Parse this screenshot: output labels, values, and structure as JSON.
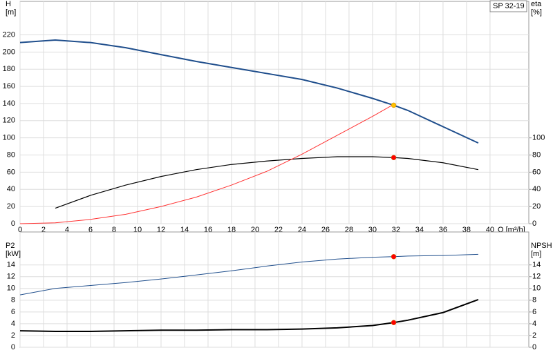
{
  "chart_data": [
    {
      "type": "line",
      "legend_text": "SP 32-19",
      "y_label": [
        "H",
        "[m]"
      ],
      "y2_label": [
        "eta",
        "[%]"
      ],
      "x_label": "Q [m³/h]",
      "xlim": [
        0,
        43.3
      ],
      "xticks": [
        0,
        2,
        4,
        6,
        8,
        10,
        12,
        14,
        16,
        18,
        20,
        22,
        24,
        26,
        28,
        30,
        32,
        34,
        36,
        38,
        40
      ],
      "ylim": [
        0,
        259
      ],
      "yticks": [
        0,
        20,
        40,
        60,
        80,
        100,
        120,
        140,
        160,
        180,
        200,
        220
      ],
      "y2lim": [
        0,
        259
      ],
      "y2ticks": [
        0,
        20,
        40,
        60,
        80,
        100
      ],
      "show_x_tick_labels": true,
      "grid": true,
      "series": [
        {
          "color": "#1f4e8c",
          "width": 2,
          "axis": "y",
          "x": [
            0,
            3,
            6,
            9,
            12,
            15,
            18,
            21,
            24,
            27,
            30,
            31.8,
            33,
            36,
            39
          ],
          "values": [
            211,
            214,
            211,
            205,
            197,
            189,
            182,
            175,
            168,
            158,
            146,
            138,
            132,
            113,
            94
          ]
        },
        {
          "color": "#000000",
          "width": 1.2,
          "axis": "y2",
          "x": [
            3,
            6,
            9,
            12,
            15,
            18,
            21,
            24,
            27,
            30,
            31.8,
            33,
            36,
            39
          ],
          "values": [
            18,
            33,
            45,
            55,
            63,
            69,
            73,
            76,
            78,
            78,
            77,
            76,
            71,
            63
          ]
        },
        {
          "color": "#ff3030",
          "width": 1,
          "axis": "y",
          "x": [
            0,
            3,
            6,
            9,
            12,
            15,
            18,
            21,
            24,
            27,
            30,
            31.8
          ],
          "values": [
            0,
            1,
            5,
            11,
            20,
            31,
            45,
            61,
            81,
            103,
            125,
            139
          ]
        }
      ],
      "markers": [
        {
          "x": 31.8,
          "y": 138,
          "axis": "y",
          "color": "#ffc000"
        },
        {
          "x": 31.8,
          "y": 77,
          "axis": "y2",
          "color": "#ff0000"
        }
      ]
    },
    {
      "type": "line",
      "y_label": [
        "P2",
        "[kW]"
      ],
      "y2_label": [
        "NPSH",
        "[m]"
      ],
      "xlim": [
        0,
        43.3
      ],
      "xticks": [
        0,
        2,
        4,
        6,
        8,
        10,
        12,
        14,
        16,
        18,
        20,
        22,
        24,
        26,
        28,
        30,
        32,
        34,
        36,
        38,
        40
      ],
      "ylim": [
        0,
        19.6
      ],
      "yticks": [
        0,
        2,
        4,
        6,
        8,
        10,
        12,
        14
      ],
      "y2lim": [
        0,
        19.6
      ],
      "y2ticks": [
        0,
        2,
        4,
        6,
        8,
        10,
        12,
        14
      ],
      "show_x_tick_labels": false,
      "grid": true,
      "series": [
        {
          "color": "#1f4e8c",
          "width": 1,
          "axis": "y",
          "x": [
            0,
            3,
            6,
            9,
            12,
            15,
            18,
            21,
            24,
            27,
            30,
            31.8,
            33,
            36,
            39
          ],
          "values": [
            8.9,
            10,
            10.5,
            11,
            11.6,
            12.3,
            13,
            13.8,
            14.5,
            15,
            15.3,
            15.4,
            15.5,
            15.6,
            15.8
          ]
        },
        {
          "color": "#000000",
          "width": 2,
          "axis": "y2",
          "x": [
            0,
            3,
            6,
            9,
            12,
            15,
            18,
            21,
            24,
            27,
            30,
            31.8,
            33,
            36,
            39
          ],
          "values": [
            2.8,
            2.7,
            2.7,
            2.8,
            2.9,
            2.9,
            3,
            3,
            3.1,
            3.3,
            3.7,
            4.2,
            4.6,
            5.9,
            8.1
          ]
        }
      ],
      "markers": [
        {
          "x": 31.8,
          "y": 15.4,
          "axis": "y",
          "color": "#ff0000"
        },
        {
          "x": 31.8,
          "y": 4.2,
          "axis": "y2",
          "color": "#ff0000"
        }
      ]
    }
  ]
}
